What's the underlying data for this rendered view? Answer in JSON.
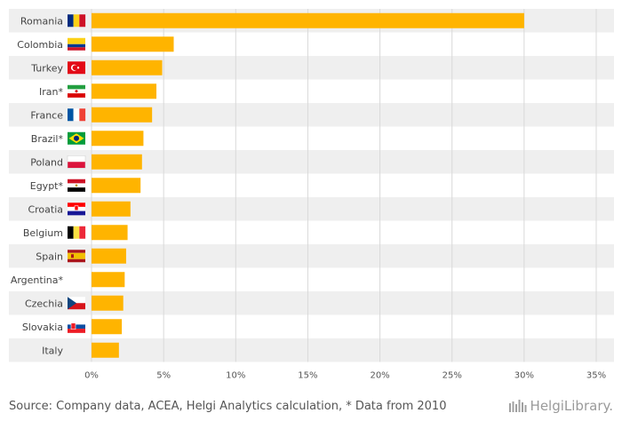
{
  "chart_data": {
    "type": "bar",
    "orientation": "horizontal",
    "categories": [
      "Romania",
      "Colombia",
      "Turkey",
      "Iran*",
      "France",
      "Brazil*",
      "Poland",
      "Egypt*",
      "Croatia",
      "Belgium",
      "Spain",
      "Argentina*",
      "Czechia",
      "Slovakia",
      "Italy"
    ],
    "values": [
      30.0,
      5.7,
      4.9,
      4.5,
      4.2,
      3.6,
      3.5,
      3.4,
      2.7,
      2.5,
      2.4,
      2.3,
      2.2,
      2.1,
      1.9
    ],
    "flags": [
      "romania-flag",
      "colombia-flag",
      "turkey-flag",
      "iran-flag",
      "france-flag",
      "brazil-flag",
      "poland-flag",
      "egypt-flag",
      "croatia-flag",
      "belgium-flag",
      "spain-flag",
      "",
      "czechia-flag",
      "slovakia-flag",
      ""
    ],
    "xlim": [
      0,
      35
    ],
    "xticks": [
      "0%",
      "5%",
      "10%",
      "15%",
      "20%",
      "25%",
      "30%",
      "35%"
    ],
    "xtick_values": [
      0,
      5,
      10,
      15,
      20,
      25,
      30,
      35
    ],
    "title": "",
    "xlabel": "",
    "ylabel": "",
    "grid": true,
    "bar_color": "#FFB400",
    "stripe_color": "#EFEFEF",
    "grid_color": "#D9D9D9"
  },
  "footer": {
    "source": "Source: Company data, ACEA, Helgi Analytics calculation, * Data from 2010",
    "logo_text": "HelgiLibrary."
  }
}
